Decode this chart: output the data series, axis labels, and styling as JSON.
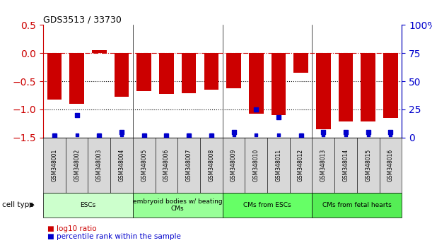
{
  "title": "GDS3513 / 33730",
  "samples": [
    "GSM348001",
    "GSM348002",
    "GSM348003",
    "GSM348004",
    "GSM348005",
    "GSM348006",
    "GSM348007",
    "GSM348008",
    "GSM348009",
    "GSM348010",
    "GSM348011",
    "GSM348012",
    "GSM348013",
    "GSM348014",
    "GSM348015",
    "GSM348016"
  ],
  "log10_ratio": [
    -0.82,
    -0.9,
    0.05,
    -0.78,
    -0.68,
    -0.73,
    -0.71,
    -0.65,
    -0.62,
    -1.08,
    -1.1,
    -0.35,
    -1.35,
    -1.22,
    -1.22,
    -1.15
  ],
  "percentile_rank": [
    2,
    20,
    2,
    5,
    2,
    2,
    2,
    2,
    5,
    25,
    18,
    2,
    5,
    5,
    5,
    5
  ],
  "cell_type_groups": [
    {
      "label": "ESCs",
      "start": 0,
      "end": 3,
      "color": "#ccffcc"
    },
    {
      "label": "embryoid bodies w/ beating\nCMs",
      "start": 4,
      "end": 7,
      "color": "#99ff99"
    },
    {
      "label": "CMs from ESCs",
      "start": 8,
      "end": 11,
      "color": "#66ff66"
    },
    {
      "label": "CMs from fetal hearts",
      "start": 12,
      "end": 15,
      "color": "#55ee55"
    }
  ],
  "bar_color": "#cc0000",
  "dot_color": "#0000cc",
  "ylim_left": [
    -1.5,
    0.5
  ],
  "ylim_right": [
    0,
    100
  ],
  "yticks_left": [
    -1.5,
    -1.0,
    -0.5,
    0.0,
    0.5
  ],
  "yticks_right": [
    0,
    25,
    50,
    75,
    100
  ],
  "hline_y": 0.0,
  "dotted_lines": [
    -0.5,
    -1.0
  ],
  "background_color": "#ffffff",
  "sample_box_color": "#d8d8d8",
  "group_separator_color": "#000000",
  "group_separator_lw": 0.5
}
